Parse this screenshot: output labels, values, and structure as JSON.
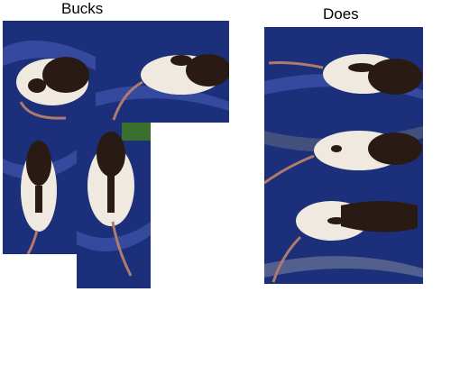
{
  "headings": {
    "left": "Bucks",
    "right": "Does"
  },
  "colors": {
    "page_background": "#ffffff",
    "satin_blue": "#1c2f7a",
    "satin_shine": "#4d66c4",
    "rat_dark": "#2a1a14",
    "rat_white": "#efe9df",
    "tail": "#b07a6c"
  },
  "photos": {
    "bucks": [
      "buck-photo-1",
      "buck-photo-2",
      "buck-photo-3",
      "buck-photo-4"
    ],
    "does": [
      "doe-photo-1",
      "doe-photo-2",
      "doe-photo-3"
    ]
  }
}
